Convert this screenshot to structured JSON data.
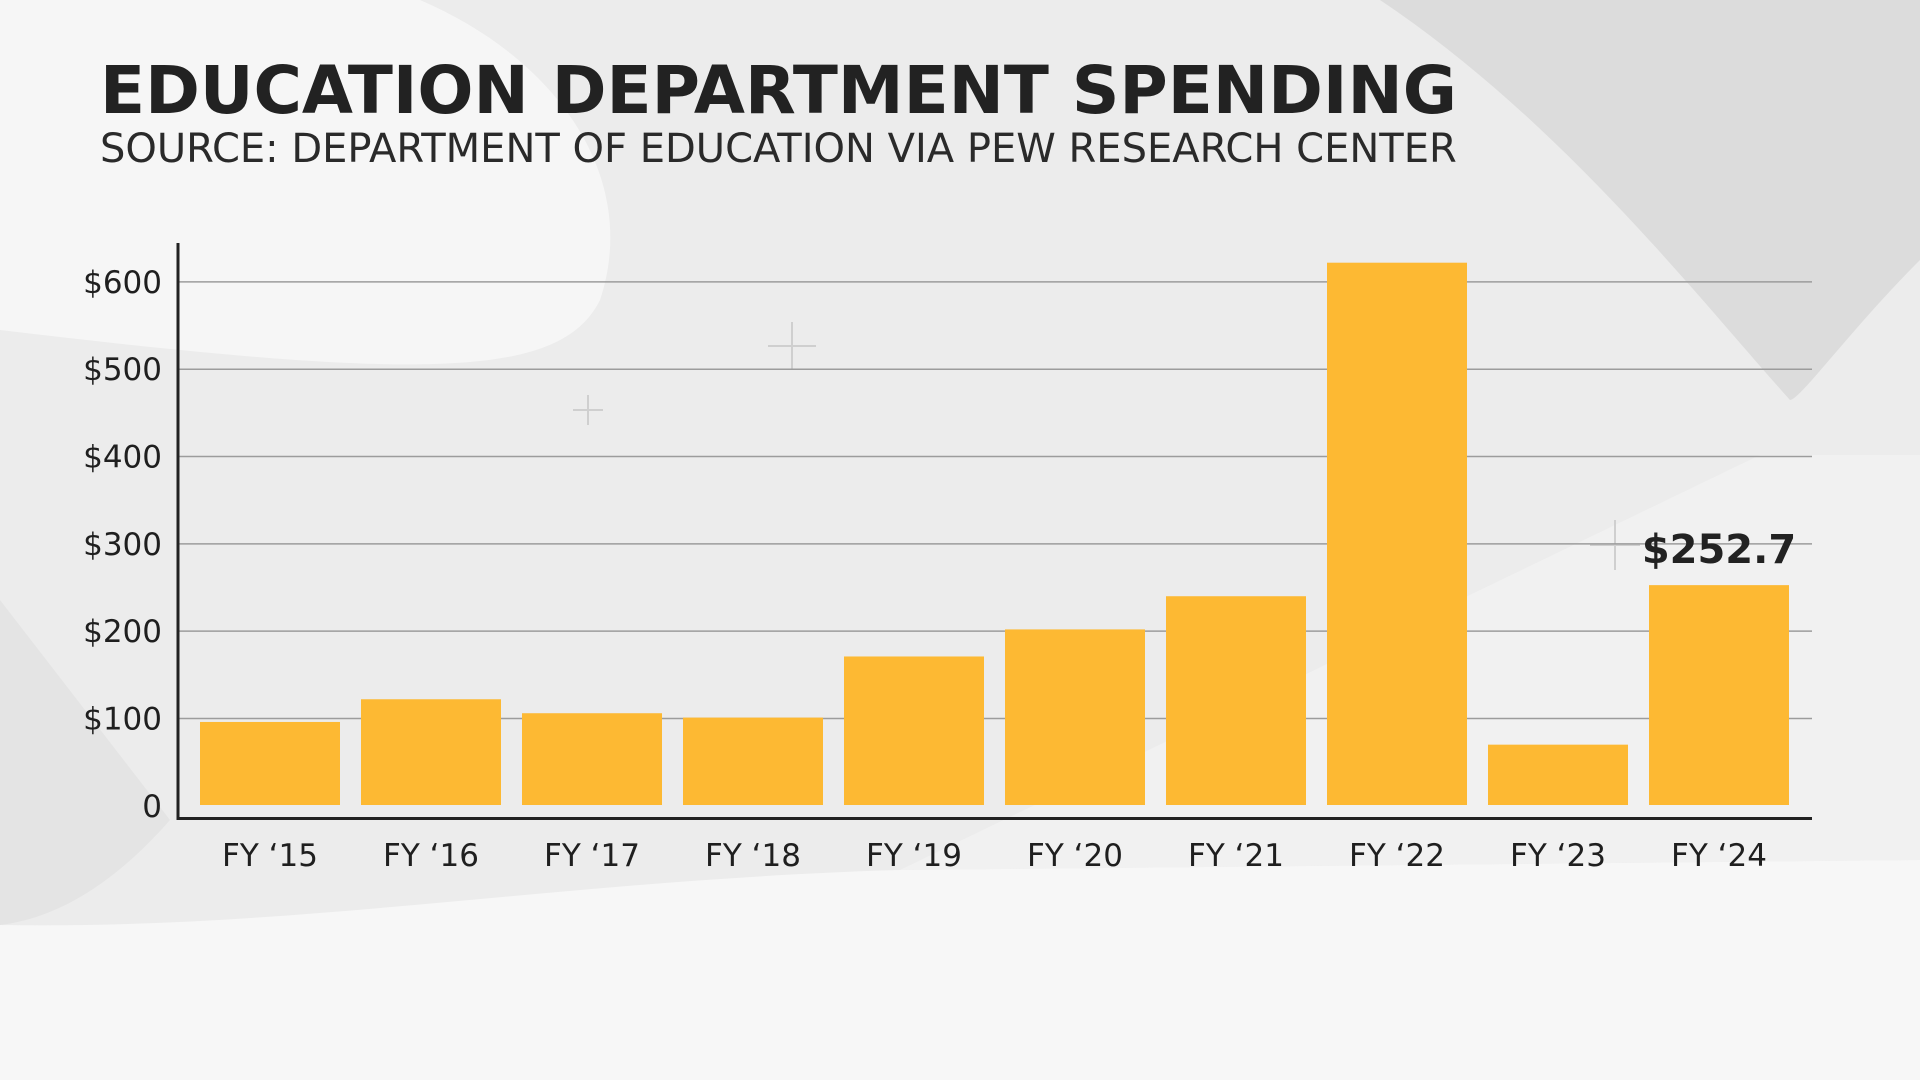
{
  "title": "EDUCATION DEPARTMENT SPENDING",
  "subtitle": "SOURCE: DEPARTMENT OF EDUCATION VIA PEW RESEARCH CENTER",
  "colors": {
    "bar": "#fdb933",
    "grid": "#9c9c9c",
    "axis": "#222222",
    "text": "#222222"
  },
  "chart_data": {
    "type": "bar",
    "title": "EDUCATION DEPARTMENT SPENDING",
    "subtitle": "SOURCE: DEPARTMENT OF EDUCATION VIA PEW RESEARCH CENTER",
    "xlabel": "",
    "ylabel": "",
    "categories": [
      "FY ‘15",
      "FY ‘16",
      "FY ‘17",
      "FY ‘18",
      "FY ‘19",
      "FY ‘20",
      "FY ‘21",
      "FY ‘22",
      "FY ‘23",
      "FY ‘24"
    ],
    "values": [
      96,
      122,
      106,
      101,
      171,
      202,
      240,
      622,
      70,
      252.7
    ],
    "ylim": [
      -14,
      648
    ],
    "yticks": [
      0,
      100,
      200,
      300,
      400,
      500,
      600
    ],
    "ytick_labels": [
      "0",
      "$100",
      "$200",
      "$300",
      "$400",
      "$500",
      "$600"
    ],
    "grid": true,
    "annotations": [
      {
        "category": "FY ‘24",
        "text": "$252.7"
      }
    ]
  }
}
